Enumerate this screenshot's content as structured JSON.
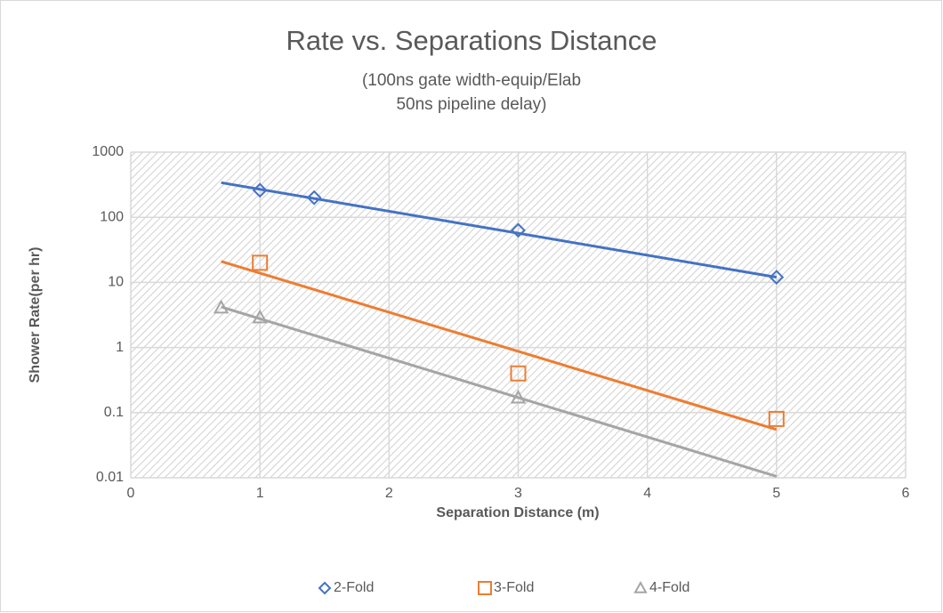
{
  "chart_data": {
    "type": "scatter",
    "title": "Rate vs. Separations Distance",
    "subtitle": [
      "(100ns gate width-equip/Elab",
      "50ns pipeline delay)"
    ],
    "x_label": "Separation Distance (m)",
    "y_label": "Shower Rate(per hr)",
    "xlim": [
      0,
      6
    ],
    "xticks": [
      0,
      1,
      2,
      3,
      4,
      5,
      6
    ],
    "ylim": [
      0.01,
      1000
    ],
    "yticks": [
      0.01,
      0.1,
      1,
      10,
      100,
      1000
    ],
    "y_log_scale": true,
    "grid": true,
    "legend": "bottom",
    "series": [
      {
        "name": "2-Fold",
        "color": "#4472c4",
        "marker": "diamond",
        "x": [
          1,
          1.42,
          3,
          5
        ],
        "values": [
          260,
          200,
          63,
          12
        ],
        "trendline": {
          "x": [
            0.7,
            5
          ],
          "values": [
            340,
            12
          ]
        }
      },
      {
        "name": "3-Fold",
        "color": "#ed7d31",
        "marker": "square",
        "x": [
          1,
          3,
          5
        ],
        "values": [
          20,
          0.4,
          0.08
        ],
        "trendline": {
          "x": [
            0.7,
            5
          ],
          "values": [
            21,
            0.055
          ]
        }
      },
      {
        "name": "4-Fold",
        "color": "#a5a5a5",
        "marker": "triangle",
        "x": [
          0.7,
          1,
          3
        ],
        "values": [
          4.1,
          2.9,
          0.17
        ],
        "trendline": {
          "x": [
            0.7,
            5
          ],
          "values": [
            4.2,
            0.0105
          ]
        }
      }
    ]
  }
}
